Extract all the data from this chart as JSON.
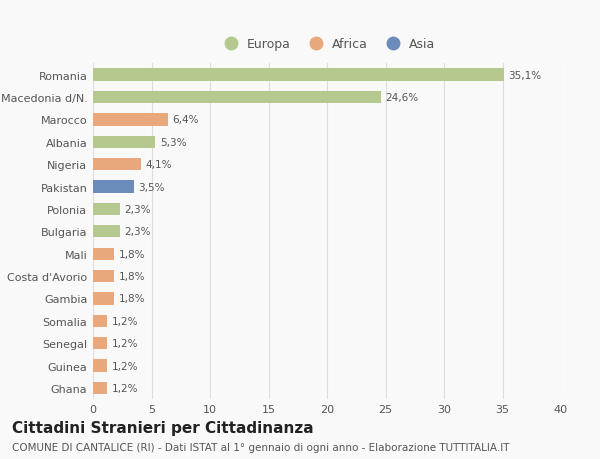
{
  "countries": [
    "Romania",
    "Macedonia d/N.",
    "Marocco",
    "Albania",
    "Nigeria",
    "Pakistan",
    "Polonia",
    "Bulgaria",
    "Mali",
    "Costa d'Avorio",
    "Gambia",
    "Somalia",
    "Senegal",
    "Guinea",
    "Ghana"
  ],
  "values": [
    35.1,
    24.6,
    6.4,
    5.3,
    4.1,
    3.5,
    2.3,
    2.3,
    1.8,
    1.8,
    1.8,
    1.2,
    1.2,
    1.2,
    1.2
  ],
  "labels": [
    "35,1%",
    "24,6%",
    "6,4%",
    "5,3%",
    "4,1%",
    "3,5%",
    "2,3%",
    "2,3%",
    "1,8%",
    "1,8%",
    "1,8%",
    "1,2%",
    "1,2%",
    "1,2%",
    "1,2%"
  ],
  "continents": [
    "Europa",
    "Europa",
    "Africa",
    "Europa",
    "Africa",
    "Asia",
    "Europa",
    "Europa",
    "Africa",
    "Africa",
    "Africa",
    "Africa",
    "Africa",
    "Africa",
    "Africa"
  ],
  "continent_colors": {
    "Europa": "#b5c98e",
    "Africa": "#e8a87c",
    "Asia": "#6b8cba"
  },
  "title": "Cittadini Stranieri per Cittadinanza",
  "subtitle": "COMUNE DI CANTALICE (RI) - Dati ISTAT al 1° gennaio di ogni anno - Elaborazione TUTTITALIA.IT",
  "xlim": [
    0,
    40
  ],
  "xticks": [
    0,
    5,
    10,
    15,
    20,
    25,
    30,
    35,
    40
  ],
  "background_color": "#f9f9f9",
  "grid_color": "#dddddd",
  "bar_height": 0.55,
  "title_fontsize": 11,
  "subtitle_fontsize": 7.5,
  "label_fontsize": 7.5,
  "tick_fontsize": 8,
  "legend_fontsize": 9
}
